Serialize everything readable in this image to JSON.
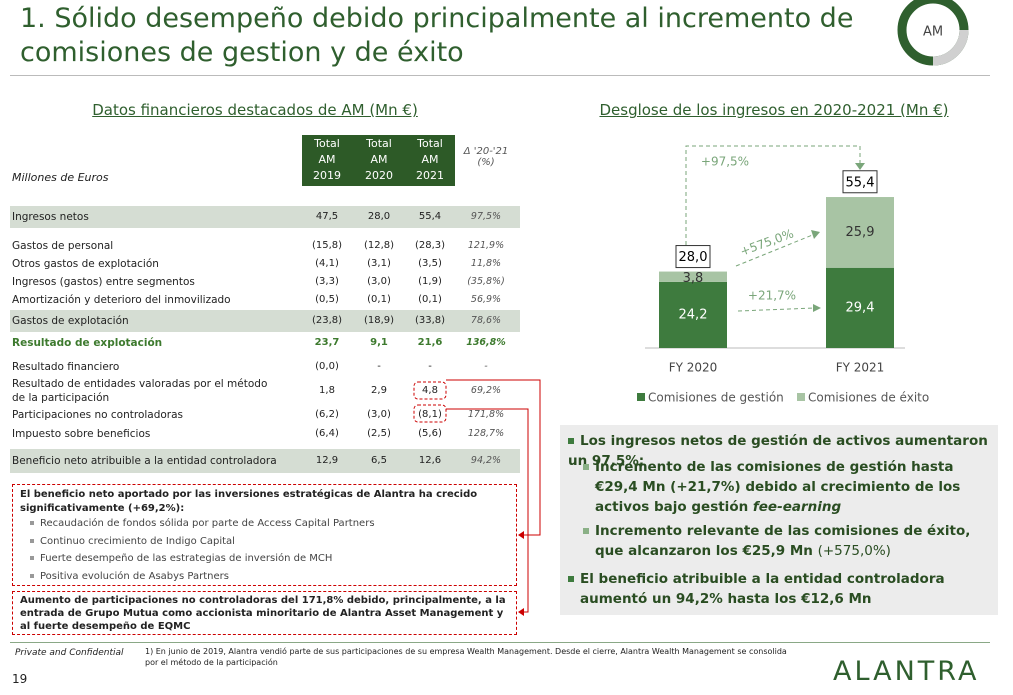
{
  "header": {
    "title": "1. Sólido desempeño debido principalmente al incremento de comisiones de gestion y de éxito",
    "badge": "AM"
  },
  "table": {
    "title": "Datos financieros destacados de AM (Mn €)",
    "unit_label": "Millones de Euros",
    "columns": [
      "Total AM 2019",
      "Total AM 2020",
      "Total AM 2021"
    ],
    "delta_header": "Δ '20-'21 (%)",
    "rows": [
      [
        "Ingresos netos",
        "47,5",
        "28,0",
        "55,4",
        "97,5%"
      ],
      [
        "Gastos de personal",
        "(15,8)",
        "(12,8)",
        "(28,3)",
        "121,9%"
      ],
      [
        "Otros gastos de explotación",
        "(4,1)",
        "(3,1)",
        "(3,5)",
        "11,8%"
      ],
      [
        "Ingresos (gastos) entre segmentos",
        "(3,3)",
        "(3,0)",
        "(1,9)",
        "(35,8%)"
      ],
      [
        "Amortización y deterioro del inmovilizado",
        "(0,5)",
        "(0,1)",
        "(0,1)",
        "56,9%"
      ],
      [
        "Gastos de explotación",
        "(23,8)",
        "(18,9)",
        "(33,8)",
        "78,6%"
      ],
      [
        "Resultado de explotación",
        "23,7",
        "9,1",
        "21,6",
        "136,8%"
      ],
      [
        "Resultado financiero",
        "(0,0)",
        "-",
        "-",
        "-"
      ],
      [
        "Resultado de entidades valoradas por el método de la participación",
        "1,8",
        "2,9",
        "4,8",
        "69,2%"
      ],
      [
        "Participaciones no controladoras",
        "(6,2)",
        "(3,0)",
        "(8,1)",
        "171,8%"
      ],
      [
        "Impuesto sobre beneficios",
        "(6,4)",
        "(2,5)",
        "(5,6)",
        "128,7%"
      ],
      [
        "Beneficio neto atribuible a la entidad controladora",
        "12,9",
        "6,5",
        "12,6",
        "94,2%"
      ]
    ]
  },
  "notes": [
    {
      "text": "El beneficio neto aportado por las inversiones estratégicas de Alantra ha crecido significativamente (+69,2%):",
      "items": [
        "Recaudación de fondos sólida por parte de Access Capital Partners",
        "Continuo crecimiento de Indigo Capital",
        "Fuerte desempeño de las estrategias de inversión de MCH",
        "Positiva evolución de Asabys Partners"
      ]
    },
    {
      "text": "Aumento de participaciones no controladoras del 171,8% debido, principalmente, a la entrada de Grupo Mutua como accionista minoritario de Alantra Asset Management y al fuerte desempeño de EQMC"
    }
  ],
  "chart_data": {
    "type": "bar",
    "stacked": true,
    "title": "Desglose de los ingresos en 2020-2021 (Mn €)",
    "categories": [
      "FY 2020",
      "FY 2021"
    ],
    "series": [
      {
        "name": "Comisiones de gestión",
        "color": "#3e7b3e",
        "values": [
          24.2,
          29.4
        ],
        "value_labels": [
          "24,2",
          "29,4"
        ]
      },
      {
        "name": "Comisiones de éxito",
        "color": "#a8c4a4",
        "values": [
          3.8,
          25.9
        ],
        "value_labels": [
          "3,8",
          "25,9"
        ]
      }
    ],
    "totals": [
      28.0,
      55.4
    ],
    "total_labels": [
      "28,0",
      "55,4"
    ],
    "annotations": [
      "+97,5%",
      "+575,0%",
      "+21,7%"
    ]
  },
  "highlights": [
    {
      "text": "Los ingresos netos de gestión de activos aumentaron un 97,5%:",
      "items": [
        [
          "Incremento de las comisiones de gestión hasta €29,4 Mn (+21,7%) debido al crecimiento de los activos bajo gestión ",
          "fee-earning"
        ],
        [
          "Incremento relevante de las comisiones de éxito, que alcanzaron los €25,9 Mn ",
          "(+575,0%)"
        ]
      ]
    },
    {
      "text": "El beneficio atribuible a la entidad controladora aumentó un 94,2% hasta los €12,6 Mn"
    }
  ],
  "footer": {
    "confidential": "Private and Confidential",
    "footnote": "1) En junio de 2019, Alantra vendió parte de sus participaciones de su empresa Wealth Management. Desde el cierre, Alantra Wealth Management se consolida por el método de la participación",
    "page": "19",
    "logo": "ALANTRA"
  }
}
